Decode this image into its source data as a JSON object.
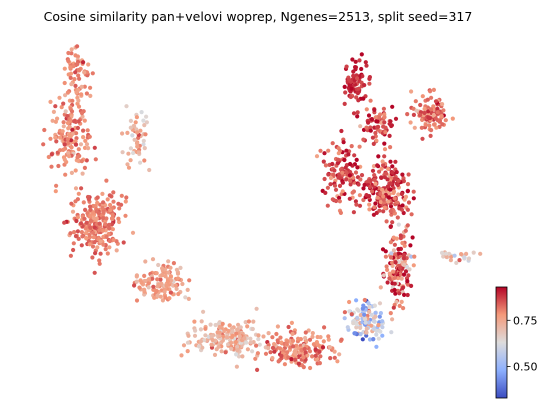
{
  "chart_data": {
    "type": "scatter",
    "title": "Cosine similarity pan+velovi woprep, Ngenes=2513, split seed=317",
    "xlabel": "",
    "ylabel": "",
    "grid": false,
    "axes_visible": false,
    "colormap": "coolwarm",
    "colorbar": {
      "placement": "right",
      "vmin": 0.33,
      "vmax": 0.93,
      "ticks": [
        0.5,
        0.75
      ],
      "tick_labels": [
        "0.50",
        "0.75"
      ]
    },
    "series": [
      {
        "clusters": [
          {
            "region": "left-arm-upper",
            "center": [
              0.0,
              6.2
            ],
            "spread": [
              0.55,
              1.2
            ],
            "count": 160,
            "value_mean": 0.8,
            "value_sd": 0.04
          },
          {
            "region": "left-arm-top",
            "center": [
              0.2,
              8.0
            ],
            "spread": [
              0.35,
              0.6
            ],
            "count": 60,
            "value_mean": 0.8,
            "value_sd": 0.04
          },
          {
            "region": "left-arm-right-edge",
            "center": [
              1.7,
              6.2
            ],
            "spread": [
              0.3,
              0.8
            ],
            "count": 50,
            "value_mean": 0.72,
            "value_sd": 0.06
          },
          {
            "region": "left-lobe",
            "center": [
              0.7,
              4.0
            ],
            "spread": [
              0.7,
              0.8
            ],
            "count": 230,
            "value_mean": 0.81,
            "value_sd": 0.03
          },
          {
            "region": "lower-arc-left",
            "center": [
              2.3,
              2.4
            ],
            "spread": [
              0.6,
              0.5
            ],
            "count": 120,
            "value_mean": 0.76,
            "value_sd": 0.04
          },
          {
            "region": "lower-arc-middle",
            "center": [
              4.0,
              1.0
            ],
            "spread": [
              0.9,
              0.5
            ],
            "count": 170,
            "value_mean": 0.72,
            "value_sd": 0.05
          },
          {
            "region": "lower-arc-bottom",
            "center": [
              5.7,
              0.7
            ],
            "spread": [
              0.9,
              0.45
            ],
            "count": 170,
            "value_mean": 0.8,
            "value_sd": 0.04
          },
          {
            "region": "lower-right-mixed",
            "center": [
              7.5,
              1.5
            ],
            "spread": [
              0.5,
              0.55
            ],
            "count": 110,
            "value_mean": 0.6,
            "value_sd": 0.12
          },
          {
            "region": "right-column",
            "center": [
              8.3,
              2.9
            ],
            "spread": [
              0.35,
              0.9
            ],
            "count": 140,
            "value_mean": 0.82,
            "value_sd": 0.1
          },
          {
            "region": "right-body",
            "center": [
              8.0,
              4.8
            ],
            "spread": [
              0.6,
              0.8
            ],
            "count": 210,
            "value_mean": 0.86,
            "value_sd": 0.06
          },
          {
            "region": "right-mid-left",
            "center": [
              6.9,
              5.3
            ],
            "spread": [
              0.5,
              0.9
            ],
            "count": 120,
            "value_mean": 0.86,
            "value_sd": 0.05
          },
          {
            "region": "upper-left-prong",
            "center": [
              7.2,
              7.6
            ],
            "spread": [
              0.3,
              0.6
            ],
            "count": 80,
            "value_mean": 0.89,
            "value_sd": 0.03
          },
          {
            "region": "upper-middle",
            "center": [
              7.8,
              6.6
            ],
            "spread": [
              0.4,
              0.5
            ],
            "count": 70,
            "value_mean": 0.86,
            "value_sd": 0.05
          },
          {
            "region": "upper-right-blob",
            "center": [
              9.1,
              6.8
            ],
            "spread": [
              0.45,
              0.5
            ],
            "count": 110,
            "value_mean": 0.81,
            "value_sd": 0.05
          },
          {
            "region": "right-tail",
            "center": [
              9.7,
              3.1
            ],
            "spread": [
              0.45,
              0.12
            ],
            "count": 25,
            "value_mean": 0.68,
            "value_sd": 0.06
          }
        ]
      }
    ],
    "xlim": [
      -1.0,
      10.6
    ],
    "ylim": [
      -0.3,
      8.8
    ]
  }
}
